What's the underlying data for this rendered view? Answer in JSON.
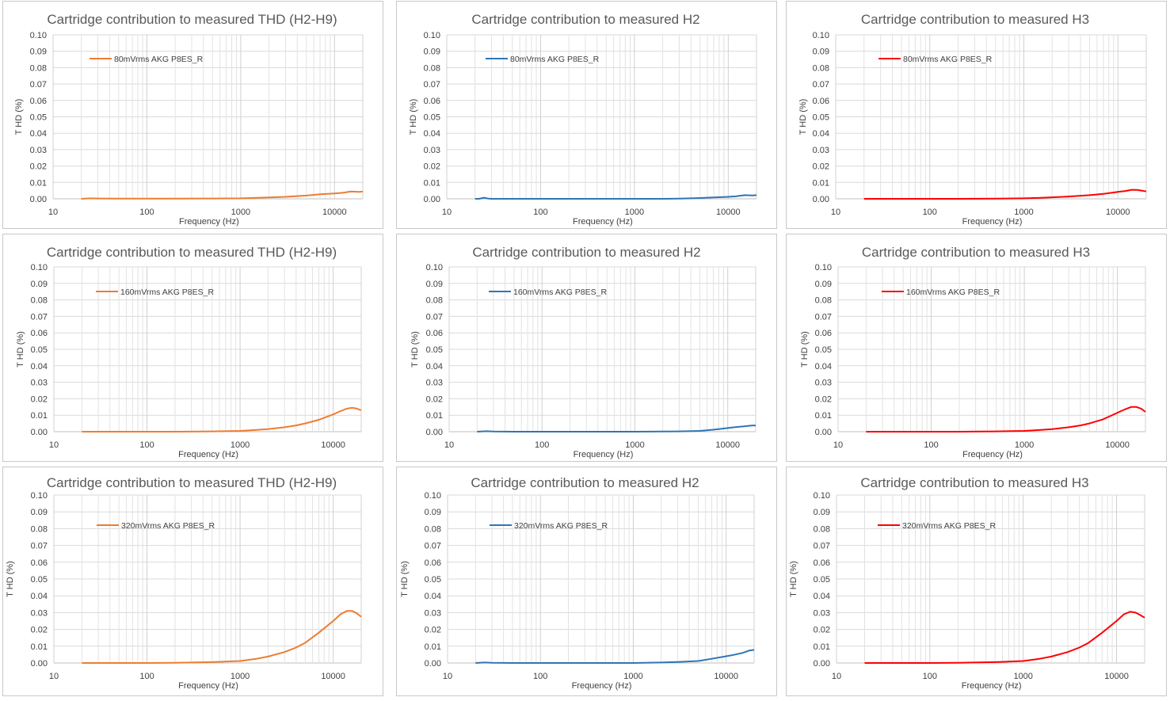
{
  "chart_data": [
    {
      "type": "line",
      "title": "Cartridge contribution to measured THD (H2-H9)",
      "xlabel": "Frequency (Hz)",
      "ylabel": "T HD (%)",
      "xscale": "log",
      "xlim": [
        10,
        20000
      ],
      "ylim": [
        0,
        0.1
      ],
      "xticks": [
        "10",
        "100",
        "1000",
        "10000"
      ],
      "yticks": [
        "0.00",
        "0.01",
        "0.02",
        "0.03",
        "0.04",
        "0.05",
        "0.06",
        "0.07",
        "0.08",
        "0.09",
        "0.10"
      ],
      "legend_position": "top-left",
      "grid": true,
      "series": [
        {
          "name": "80mVrms AKG P8ES_R",
          "color": "#ED7D31",
          "x": [
            20,
            25,
            30,
            50,
            100,
            200,
            500,
            1000,
            2000,
            3000,
            5000,
            7000,
            10000,
            12000,
            15000,
            18000,
            20000
          ],
          "y": [
            0.0,
            0.0003,
            0.0002,
            0.0001,
            0.0001,
            0.0001,
            0.0002,
            0.0003,
            0.0008,
            0.0012,
            0.002,
            0.0028,
            0.0033,
            0.0036,
            0.0045,
            0.0042,
            0.0044
          ]
        }
      ]
    },
    {
      "type": "line",
      "title": "Cartridge contribution to measured H2",
      "xlabel": "Frequency (Hz)",
      "ylabel": "T HD (%)",
      "xscale": "log",
      "xlim": [
        10,
        20000
      ],
      "ylim": [
        0,
        0.1
      ],
      "xticks": [
        "10",
        "100",
        "1000",
        "10000"
      ],
      "yticks": [
        "0.00",
        "0.01",
        "0.02",
        "0.03",
        "0.04",
        "0.05",
        "0.06",
        "0.07",
        "0.08",
        "0.09",
        "0.10"
      ],
      "legend_position": "top-left",
      "grid": true,
      "series": [
        {
          "name": "80mVrms AKG P8ES_R",
          "color": "#2E75B6",
          "x": [
            20,
            22,
            25,
            28,
            30,
            50,
            100,
            200,
            500,
            1000,
            2000,
            3000,
            5000,
            7000,
            10000,
            12000,
            15000,
            18000,
            20000
          ],
          "y": [
            0.0,
            0.0,
            0.0007,
            0.0001,
            0.0,
            0.0,
            0.0,
            0.0,
            0.0,
            0.0,
            0.0,
            0.0001,
            0.0005,
            0.0008,
            0.0012,
            0.0015,
            0.0022,
            0.0021,
            0.0022
          ]
        }
      ]
    },
    {
      "type": "line",
      "title": "Cartridge contribution to measured H3",
      "xlabel": "Frequency (Hz)",
      "ylabel": "T HD (%)",
      "xscale": "log",
      "xlim": [
        10,
        20000
      ],
      "ylim": [
        0,
        0.1
      ],
      "xticks": [
        "10",
        "100",
        "1000",
        "10000"
      ],
      "yticks": [
        "0.00",
        "0.01",
        "0.02",
        "0.03",
        "0.04",
        "0.05",
        "0.06",
        "0.07",
        "0.08",
        "0.09",
        "0.10"
      ],
      "legend_position": "top-left",
      "grid": true,
      "series": [
        {
          "name": "80mVrms AKG P8ES_R",
          "color": "#FF0000",
          "x": [
            20,
            50,
            100,
            200,
            500,
            1000,
            1500,
            2000,
            3000,
            5000,
            7000,
            10000,
            12000,
            14000,
            16000,
            18000,
            20000
          ],
          "y": [
            0.0,
            0.0,
            0.0,
            0.0,
            0.0001,
            0.0003,
            0.0006,
            0.0009,
            0.0014,
            0.0022,
            0.003,
            0.0042,
            0.0048,
            0.0055,
            0.0054,
            0.005,
            0.0045
          ]
        }
      ]
    },
    {
      "type": "line",
      "title": "Cartridge contribution to measured THD (H2-H9)",
      "xlabel": "Frequency (Hz)",
      "ylabel": "T HD (%)",
      "xscale": "log",
      "xlim": [
        10,
        20000
      ],
      "ylim": [
        0,
        0.1
      ],
      "xticks": [
        "10",
        "100",
        "1000",
        "10000"
      ],
      "yticks": [
        "0.00",
        "0.01",
        "0.02",
        "0.03",
        "0.04",
        "0.05",
        "0.06",
        "0.07",
        "0.08",
        "0.09",
        "0.10"
      ],
      "legend_position": "top-left",
      "grid": true,
      "series": [
        {
          "name": "160mVrms AKG P8ES_R",
          "color": "#ED7D31",
          "x": [
            20,
            50,
            100,
            200,
            500,
            1000,
            1500,
            2000,
            3000,
            4000,
            5000,
            7000,
            10000,
            12000,
            14000,
            16000,
            18000,
            20000
          ],
          "y": [
            0.0,
            0.0,
            0.0,
            0.0,
            0.0002,
            0.0005,
            0.0011,
            0.0016,
            0.0027,
            0.0038,
            0.005,
            0.0072,
            0.0105,
            0.0125,
            0.014,
            0.0145,
            0.014,
            0.013
          ]
        }
      ]
    },
    {
      "type": "line",
      "title": "Cartridge contribution to measured H2",
      "xlabel": "Frequency (Hz)",
      "ylabel": "T HD (%)",
      "xscale": "log",
      "xlim": [
        10,
        20000
      ],
      "ylim": [
        0,
        0.1
      ],
      "xticks": [
        "10",
        "100",
        "1000",
        "10000"
      ],
      "yticks": [
        "0.00",
        "0.01",
        "0.02",
        "0.03",
        "0.04",
        "0.05",
        "0.06",
        "0.07",
        "0.08",
        "0.09",
        "0.10"
      ],
      "legend_position": "top-left",
      "grid": true,
      "series": [
        {
          "name": "160mVrms AKG P8ES_R",
          "color": "#2E75B6",
          "x": [
            20,
            25,
            30,
            50,
            100,
            200,
            500,
            1000,
            2000,
            3000,
            5000,
            7000,
            10000,
            12000,
            15000,
            18000,
            20000
          ],
          "y": [
            0.0,
            0.0003,
            0.0001,
            0.0,
            0.0,
            0.0,
            0.0,
            0.0,
            0.0001,
            0.0002,
            0.0005,
            0.0012,
            0.0022,
            0.0028,
            0.0032,
            0.0037,
            0.0038
          ]
        }
      ]
    },
    {
      "type": "line",
      "title": "Cartridge contribution to measured H3",
      "xlabel": "Frequency (Hz)",
      "ylabel": "T HD (%)",
      "xscale": "log",
      "xlim": [
        10,
        20000
      ],
      "ylim": [
        0,
        0.1
      ],
      "xticks": [
        "10",
        "100",
        "1000",
        "10000"
      ],
      "yticks": [
        "0.00",
        "0.01",
        "0.02",
        "0.03",
        "0.04",
        "0.05",
        "0.06",
        "0.07",
        "0.08",
        "0.09",
        "0.10"
      ],
      "legend_position": "top-left",
      "grid": true,
      "series": [
        {
          "name": "160mVrms AKG P8ES_R",
          "color": "#FF0000",
          "x": [
            20,
            50,
            100,
            200,
            500,
            1000,
            1500,
            2000,
            3000,
            4000,
            5000,
            7000,
            10000,
            12000,
            14000,
            16000,
            18000,
            20000
          ],
          "y": [
            0.0,
            0.0,
            0.0,
            0.0,
            0.0002,
            0.0005,
            0.0011,
            0.0016,
            0.0027,
            0.0038,
            0.005,
            0.0075,
            0.0115,
            0.0135,
            0.015,
            0.015,
            0.014,
            0.012
          ]
        }
      ]
    },
    {
      "type": "line",
      "title": "Cartridge contribution to measured THD (H2-H9)",
      "xlabel": "Frequency (Hz)",
      "ylabel": "T HD (%)",
      "xscale": "log",
      "xlim": [
        10,
        20000
      ],
      "ylim": [
        0,
        0.1
      ],
      "xticks": [
        "10",
        "100",
        "1000",
        "10000"
      ],
      "yticks": [
        "0.00",
        "0.01",
        "0.02",
        "0.03",
        "0.04",
        "0.05",
        "0.06",
        "0.07",
        "0.08",
        "0.09",
        "0.10"
      ],
      "legend_position": "top-left",
      "grid": true,
      "series": [
        {
          "name": "320mVrms AKG P8ES_R",
          "color": "#ED7D31",
          "x": [
            20,
            50,
            100,
            200,
            500,
            1000,
            1500,
            2000,
            3000,
            4000,
            5000,
            7000,
            10000,
            12000,
            14000,
            16000,
            18000,
            20000
          ],
          "y": [
            0.0,
            0.0,
            0.0,
            0.0001,
            0.0005,
            0.0012,
            0.0025,
            0.0038,
            0.0065,
            0.0092,
            0.012,
            0.018,
            0.025,
            0.029,
            0.031,
            0.031,
            0.0295,
            0.0275
          ]
        }
      ]
    },
    {
      "type": "line",
      "title": "Cartridge contribution to measured H2",
      "xlabel": "Frequency (Hz)",
      "ylabel": "T HD (%)",
      "xscale": "log",
      "xlim": [
        10,
        20000
      ],
      "ylim": [
        0,
        0.1
      ],
      "xticks": [
        "10",
        "100",
        "1000",
        "10000"
      ],
      "yticks": [
        "0.00",
        "0.01",
        "0.02",
        "0.03",
        "0.04",
        "0.05",
        "0.06",
        "0.07",
        "0.08",
        "0.09",
        "0.10"
      ],
      "legend_position": "top-left",
      "grid": true,
      "series": [
        {
          "name": "320mVrms AKG P8ES_R",
          "color": "#2E75B6",
          "x": [
            20,
            25,
            30,
            50,
            100,
            200,
            500,
            1000,
            2000,
            3000,
            5000,
            7000,
            10000,
            12000,
            15000,
            18000,
            20000
          ],
          "y": [
            0.0,
            0.0003,
            0.0001,
            0.0,
            0.0,
            0.0,
            0.0,
            0.0,
            0.0003,
            0.0006,
            0.0012,
            0.0025,
            0.004,
            0.0048,
            0.006,
            0.0075,
            0.0078
          ]
        }
      ]
    },
    {
      "type": "line",
      "title": "Cartridge contribution to measured H3",
      "xlabel": "Frequency (Hz)",
      "ylabel": "T HD (%)",
      "xscale": "log",
      "xlim": [
        10,
        20000
      ],
      "ylim": [
        0,
        0.1
      ],
      "xticks": [
        "10",
        "100",
        "1000",
        "10000"
      ],
      "yticks": [
        "0.00",
        "0.01",
        "0.02",
        "0.03",
        "0.04",
        "0.05",
        "0.06",
        "0.07",
        "0.08",
        "0.09",
        "0.10"
      ],
      "legend_position": "top-left",
      "grid": true,
      "series": [
        {
          "name": "320mVrms AKG P8ES_R",
          "color": "#FF0000",
          "x": [
            20,
            50,
            100,
            200,
            500,
            1000,
            1500,
            2000,
            3000,
            4000,
            5000,
            7000,
            10000,
            12000,
            14000,
            16000,
            18000,
            20000
          ],
          "y": [
            0.0,
            0.0,
            0.0,
            0.0001,
            0.0005,
            0.0012,
            0.0025,
            0.0038,
            0.0065,
            0.0092,
            0.012,
            0.018,
            0.025,
            0.029,
            0.0305,
            0.03,
            0.0285,
            0.027
          ]
        }
      ]
    }
  ]
}
